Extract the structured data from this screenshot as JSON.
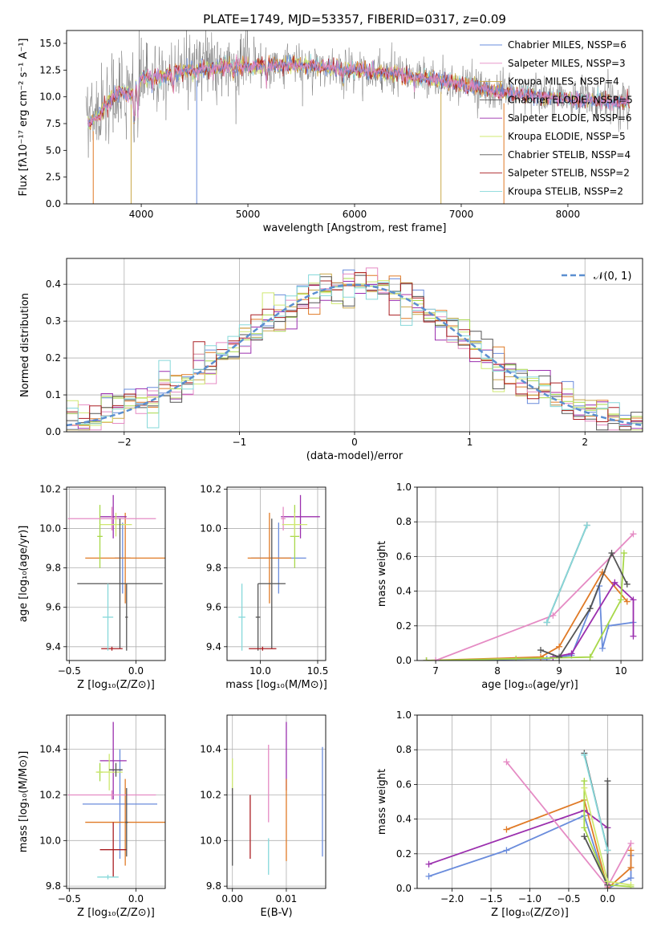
{
  "figure_title": "PLATE=1749, MJD=53357, FIBERID=0317, z=0.09",
  "colors": {
    "models": [
      "#6a8cdc",
      "#e07a26",
      "#9b2fae",
      "#a8d84a",
      "#e58bc4",
      "#c9a84a",
      "#cfe870",
      "#555555",
      "#aa1e22",
      "#86d8da"
    ],
    "gray": "#7a7a7a",
    "gauss": "#5b8fd0"
  },
  "chart_data": [
    {
      "id": "spectrum",
      "type": "line",
      "title": "PLATE=1749, MJD=53357, FIBERID=0317, z=0.09",
      "xlabel": "wavelength [Angstrom, rest frame]",
      "ylabel": "Flux [fλ10⁻¹⁷ erg cm⁻² s⁻¹ A⁻¹]",
      "xlim": [
        3300,
        8700
      ],
      "ylim": [
        0,
        16.2
      ],
      "xticks": [
        4000,
        5000,
        6000,
        7000,
        8000
      ],
      "yticks": [
        0.0,
        2.5,
        5.0,
        7.5,
        10.0,
        12.5,
        15.0
      ],
      "grid": false,
      "legend_position": "top-right",
      "legend": [
        "Chabrier MILES, NSSP=6",
        "Salpeter MILES, NSSP=3",
        "Kroupa MILES, NSSP=4",
        "Chabrier ELODIE, NSSP=5",
        "Salpeter ELODIE, NSSP=6",
        "Kroupa ELODIE, NSSP=5",
        "Chabrier STELIB, NSSP=4",
        "Salpeter STELIB, NSSP=2",
        "Kroupa STELIB, NSSP=2"
      ],
      "legend_colors": [
        "#6a8cdc",
        "#e58bc4",
        "#c9a84a",
        "#555555",
        "#9b2fae",
        "#cfe870",
        "#555555",
        "#aa1e22",
        "#86d8da"
      ],
      "continuum": {
        "x": [
          3500,
          3600,
          3700,
          3800,
          3900,
          4000,
          4100,
          4200,
          4400,
          4600,
          4800,
          5000,
          5200,
          5400,
          5600,
          5800,
          6000,
          6200,
          6400,
          6600,
          6800,
          7000,
          7200,
          7400,
          7600,
          7800,
          8000,
          8200,
          8400,
          8600
        ],
        "y": [
          7.4,
          8.2,
          9.6,
          10.6,
          10.2,
          11.8,
          11.9,
          11.9,
          12.4,
          12.6,
          12.9,
          12.8,
          12.9,
          13.0,
          12.9,
          12.6,
          12.6,
          12.3,
          12.1,
          11.8,
          11.5,
          11.2,
          10.8,
          10.4,
          10.1,
          10.0,
          9.8,
          9.6,
          9.5,
          9.4
        ]
      }
    },
    {
      "id": "residuals",
      "type": "bar",
      "xlabel": "(data-model)/error",
      "ylabel": "Normed distribution",
      "xlim": [
        -2.5,
        2.5
      ],
      "ylim": [
        0,
        0.47
      ],
      "xticks": [
        -2,
        -1,
        0,
        1,
        2
      ],
      "yticks": [
        0.0,
        0.1,
        0.2,
        0.3,
        0.4
      ],
      "grid": true,
      "legend_position": "top-right",
      "legend": [
        "𝒩(0, 1)"
      ],
      "bin_width": 0.1,
      "gauss_mean": 0,
      "gauss_sigma": 1
    },
    {
      "id": "age-vs-Z",
      "type": "scatter",
      "xlabel": "Z [log₁₀(Z/Z⊙)]",
      "ylabel": "age  [log₁₀(age/yr)]",
      "xlim": [
        -0.52,
        0.22
      ],
      "ylim": [
        9.33,
        10.21
      ],
      "xticks": [
        -0.5,
        0.0
      ],
      "yticks": [
        9.4,
        9.6,
        9.8,
        10.0,
        10.2
      ],
      "grid": true,
      "points": [
        {
          "x": -0.1,
          "y": 9.85,
          "xerr": 0.06,
          "yerr": 0.18,
          "color": "#6a8cdc"
        },
        {
          "x": -0.08,
          "y": 9.85,
          "xerr": 0.3,
          "yerr": 0.23,
          "color": "#e07a26"
        },
        {
          "x": -0.17,
          "y": 10.06,
          "xerr": 0.1,
          "yerr": 0.11,
          "color": "#9b2fae"
        },
        {
          "x": -0.27,
          "y": 9.96,
          "xerr": 0.02,
          "yerr": 0.16,
          "color": "#a8d84a"
        },
        {
          "x": -0.18,
          "y": 10.05,
          "xerr": 0.33,
          "yerr": 0.06,
          "color": "#e58bc4"
        },
        {
          "x": -0.15,
          "y": 10.02,
          "xerr": 0.12,
          "yerr": 0.06,
          "color": "#cfe870"
        },
        {
          "x": -0.12,
          "y": 9.72,
          "xerr": 0.32,
          "yerr": 0.33,
          "color": "#555555"
        },
        {
          "x": -0.07,
          "y": 9.55,
          "xerr": 0.01,
          "yerr": 0.17,
          "color": "#555555"
        },
        {
          "x": -0.18,
          "y": 9.39,
          "xerr": 0.08,
          "yerr": 0.01,
          "color": "#aa1e22"
        },
        {
          "x": -0.21,
          "y": 9.55,
          "xerr": 0.04,
          "yerr": 0.17,
          "color": "#86d8da"
        }
      ]
    },
    {
      "id": "age-vs-mass",
      "type": "scatter",
      "xlabel": "mass [log₁₀(M/M⊙)]",
      "ylabel": "",
      "xlim": [
        9.71,
        10.57
      ],
      "ylim": [
        9.33,
        10.21
      ],
      "xticks": [
        10.0,
        10.5
      ],
      "yticks": [
        9.4,
        9.6,
        9.8,
        10.0,
        10.2
      ],
      "grid": true,
      "points": [
        {
          "x": 10.16,
          "y": 9.85,
          "xerr": 0.24,
          "yerr": 0.18,
          "color": "#6a8cdc"
        },
        {
          "x": 10.08,
          "y": 9.85,
          "xerr": 0.19,
          "yerr": 0.23,
          "color": "#e07a26"
        },
        {
          "x": 10.35,
          "y": 10.06,
          "xerr": 0.17,
          "yerr": 0.11,
          "color": "#9b2fae"
        },
        {
          "x": 10.3,
          "y": 9.96,
          "xerr": 0.04,
          "yerr": 0.16,
          "color": "#a8d84a"
        },
        {
          "x": 10.2,
          "y": 10.05,
          "xerr": 0.02,
          "yerr": 0.06,
          "color": "#e58bc4"
        },
        {
          "x": 10.3,
          "y": 10.02,
          "xerr": 0.11,
          "yerr": 0.06,
          "color": "#cfe870"
        },
        {
          "x": 10.1,
          "y": 9.72,
          "xerr": 0.12,
          "yerr": 0.33,
          "color": "#555555"
        },
        {
          "x": 9.98,
          "y": 9.55,
          "xerr": 0.02,
          "yerr": 0.17,
          "color": "#555555"
        },
        {
          "x": 10.02,
          "y": 9.39,
          "xerr": 0.12,
          "yerr": 0.01,
          "color": "#aa1e22"
        },
        {
          "x": 9.84,
          "y": 9.55,
          "xerr": 0.03,
          "yerr": 0.17,
          "color": "#86d8da"
        }
      ]
    },
    {
      "id": "weight-vs-age",
      "type": "line",
      "xlabel": "age  [log₁₀(age/yr)]",
      "ylabel": "mass weight",
      "xlim": [
        6.7,
        10.35
      ],
      "ylim": [
        0,
        1.0
      ],
      "xticks": [
        7,
        8,
        9,
        10
      ],
      "yticks": [
        0.0,
        0.2,
        0.4,
        0.6,
        0.8,
        1.0
      ],
      "grid": true,
      "series": [
        {
          "color": "#6a8cdc",
          "x": [
            6.85,
            8.8,
            9.2,
            9.65,
            9.7,
            9.8,
            10.2
          ],
          "y": [
            0.0,
            0.01,
            0.03,
            0.43,
            0.07,
            0.2,
            0.22
          ]
        },
        {
          "color": "#e07a26",
          "x": [
            6.85,
            8.7,
            9.0,
            9.7,
            10.1
          ],
          "y": [
            0.0,
            0.02,
            0.08,
            0.51,
            0.34
          ]
        },
        {
          "color": "#9b2fae",
          "x": [
            8.9,
            9.2,
            9.9,
            10.2,
            10.2
          ],
          "y": [
            0.02,
            0.04,
            0.45,
            0.35,
            0.14
          ]
        },
        {
          "color": "#a8d84a",
          "x": [
            6.85,
            8.3,
            9.5,
            10.0,
            10.05
          ],
          "y": [
            0.0,
            0.01,
            0.02,
            0.35,
            0.62
          ]
        },
        {
          "color": "#e58bc4",
          "x": [
            7.0,
            8.9,
            10.2
          ],
          "y": [
            0.0,
            0.26,
            0.73
          ]
        },
        {
          "color": "#555555",
          "x": [
            8.7,
            9.0,
            9.5,
            9.85,
            10.1
          ],
          "y": [
            0.06,
            0.02,
            0.3,
            0.62,
            0.44
          ]
        },
        {
          "color": "#555555",
          "x": [
            8.8,
            9.45
          ],
          "y": [
            0.22,
            0.78
          ]
        },
        {
          "color": "#86d8da",
          "x": [
            8.8,
            9.45
          ],
          "y": [
            0.22,
            0.78
          ]
        }
      ]
    },
    {
      "id": "mass-vs-Z",
      "type": "scatter",
      "xlabel": "Z [log₁₀(Z/Z⊙)]",
      "ylabel": "mass [log₁₀(M/M⊙)]",
      "xlim": [
        -0.52,
        0.22
      ],
      "ylim": [
        9.79,
        10.55
      ],
      "xticks": [
        -0.5,
        0.0
      ],
      "yticks": [
        9.8,
        10.0,
        10.2,
        10.4
      ],
      "grid": true,
      "points": [
        {
          "x": -0.12,
          "y": 10.16,
          "xerr": 0.28,
          "yerr": 0.24,
          "color": "#6a8cdc"
        },
        {
          "x": -0.08,
          "y": 10.08,
          "xerr": 0.3,
          "yerr": 0.19,
          "color": "#e07a26"
        },
        {
          "x": -0.17,
          "y": 10.35,
          "xerr": 0.1,
          "yerr": 0.17,
          "color": "#9b2fae"
        },
        {
          "x": -0.27,
          "y": 10.3,
          "xerr": 0.02,
          "yerr": 0.04,
          "color": "#a8d84a"
        },
        {
          "x": -0.18,
          "y": 10.2,
          "xerr": 0.33,
          "yerr": 0.02,
          "color": "#e58bc4"
        },
        {
          "x": -0.2,
          "y": 10.3,
          "xerr": 0.1,
          "yerr": 0.08,
          "color": "#cfe870"
        },
        {
          "x": -0.15,
          "y": 10.31,
          "xerr": 0.05,
          "yerr": 0.03,
          "color": "#555555"
        },
        {
          "x": -0.07,
          "y": 10.08,
          "xerr": 0.01,
          "yerr": 0.15,
          "color": "#555555"
        },
        {
          "x": -0.17,
          "y": 9.96,
          "xerr": 0.1,
          "yerr": 0.12,
          "color": "#aa1e22"
        },
        {
          "x": -0.21,
          "y": 9.84,
          "xerr": 0.08,
          "yerr": 0.01,
          "color": "#86d8da"
        }
      ]
    },
    {
      "id": "mass-vs-ebv",
      "type": "scatter",
      "xlabel": "E(B-V)",
      "ylabel": "",
      "xlim": [
        -0.001,
        0.0173
      ],
      "ylim": [
        9.79,
        10.55
      ],
      "xticks": [
        0.0,
        0.01
      ],
      "tick_labels": [
        "0.00",
        "0.01"
      ],
      "yticks": [
        9.8,
        10.0,
        10.2,
        10.4
      ],
      "grid": true,
      "points": [
        {
          "x": 0.0,
          "y": 10.29,
          "xerr": 0,
          "yerr": 0.07,
          "color": "#cfe870"
        },
        {
          "x": 0.0,
          "y": 10.06,
          "xerr": 0,
          "yerr": 0.17,
          "color": "#555555"
        },
        {
          "x": 0.0033,
          "y": 10.06,
          "xerr": 0,
          "yerr": 0.14,
          "color": "#aa1e22"
        },
        {
          "x": 0.0067,
          "y": 10.25,
          "xerr": 0,
          "yerr": 0.17,
          "color": "#e58bc4"
        },
        {
          "x": 0.0067,
          "y": 9.93,
          "xerr": 0,
          "yerr": 0.08,
          "color": "#86d8da"
        },
        {
          "x": 0.01,
          "y": 10.37,
          "xerr": 0,
          "yerr": 0.15,
          "color": "#9b2fae"
        },
        {
          "x": 0.01,
          "y": 10.09,
          "xerr": 0,
          "yerr": 0.18,
          "color": "#e07a26"
        },
        {
          "x": 0.0167,
          "y": 10.17,
          "xerr": 0,
          "yerr": 0.24,
          "color": "#6a8cdc"
        }
      ]
    },
    {
      "id": "weight-vs-Z",
      "type": "line",
      "xlabel": "Z [log₁₀(Z/Z⊙)]",
      "ylabel": "mass weight",
      "xlim": [
        -2.45,
        0.45
      ],
      "ylim": [
        0,
        1.0
      ],
      "xticks": [
        -2.0,
        -1.5,
        -1.0,
        -0.5,
        0.0
      ],
      "yticks": [
        0.0,
        0.2,
        0.4,
        0.6,
        0.8,
        1.0
      ],
      "grid": true,
      "series": [
        {
          "color": "#6a8cdc",
          "x": [
            -2.3,
            -1.3,
            -0.3,
            0.0,
            0.3,
            0.3
          ],
          "y": [
            0.07,
            0.22,
            0.42,
            0.0,
            0.06,
            0.19
          ]
        },
        {
          "color": "#e07a26",
          "x": [
            -1.3,
            -0.3,
            0.0,
            0.3,
            0.3
          ],
          "y": [
            0.34,
            0.51,
            0.0,
            0.12,
            0.22
          ]
        },
        {
          "color": "#9b2fae",
          "x": [
            -2.3,
            -0.3,
            0.0,
            0.0
          ],
          "y": [
            0.14,
            0.45,
            0.35,
            0.02
          ]
        },
        {
          "color": "#a8d84a",
          "x": [
            -0.3,
            -0.3,
            0.0,
            0.3
          ],
          "y": [
            0.62,
            0.35,
            0.02,
            0.01
          ]
        },
        {
          "color": "#e58bc4",
          "x": [
            -1.3,
            0.0,
            0.3
          ],
          "y": [
            0.73,
            0.01,
            0.26
          ]
        },
        {
          "color": "#555555",
          "x": [
            -0.3,
            0.0,
            0.0
          ],
          "y": [
            0.3,
            0.02,
            0.62
          ]
        },
        {
          "color": "#555555",
          "x": [
            -0.3,
            0.0
          ],
          "y": [
            0.78,
            0.22
          ]
        },
        {
          "color": "#86d8da",
          "x": [
            -0.3,
            0.0
          ],
          "y": [
            0.77,
            0.22
          ]
        },
        {
          "color": "#cfe870",
          "x": [
            -0.3,
            0.0,
            0.3
          ],
          "y": [
            0.58,
            0.04,
            0.02
          ]
        }
      ]
    }
  ]
}
